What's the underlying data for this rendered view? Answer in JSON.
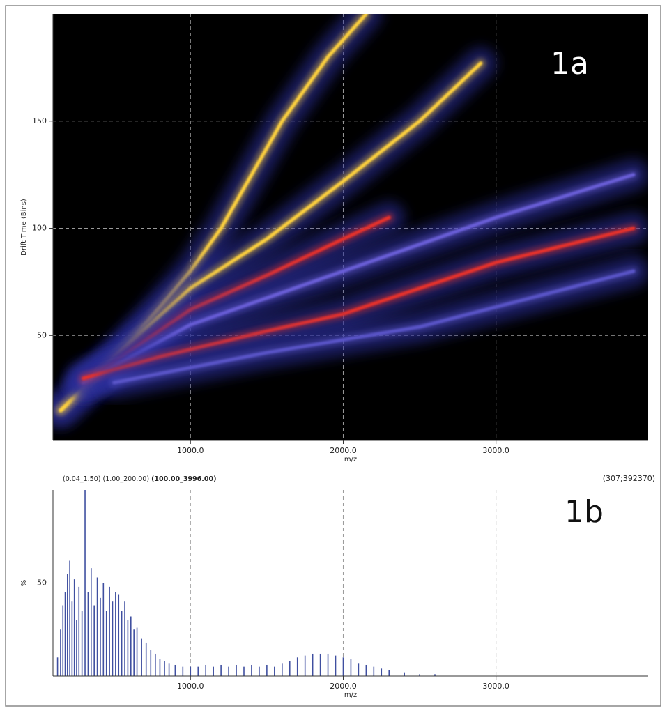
{
  "chart_data": [
    {
      "type": "density",
      "annotation": "1a",
      "ylabel": "Drift Time (Bins)",
      "xlabel": "m/z",
      "background": "#000000",
      "grid": true,
      "grid_color": "#9a9a9a",
      "xlim": [
        100,
        3996
      ],
      "xticks": [
        {
          "value": 1000,
          "label": "1000.0"
        },
        {
          "value": 2000,
          "label": "2000.0"
        },
        {
          "value": 3000,
          "label": "3000.0"
        }
      ],
      "ylim": [
        1,
        200
      ],
      "yticks": [
        50,
        100,
        150
      ],
      "series": [
        {
          "color": "#ffd23c",
          "x": [
            150,
            400,
            700,
            1000,
            1200,
            1600,
            1900,
            2150
          ],
          "values": [
            15,
            30,
            55,
            80,
            100,
            150,
            180,
            200
          ]
        },
        {
          "color": "#ffd23c",
          "x": [
            150,
            500,
            1000,
            1500,
            2000,
            2500,
            2900
          ],
          "values": [
            15,
            40,
            72,
            95,
            122,
            150,
            177
          ]
        },
        {
          "color": "#e8302a",
          "x": [
            300,
            1000,
            1500,
            2000,
            2300
          ],
          "values": [
            28,
            62,
            78,
            95,
            105
          ]
        },
        {
          "color": "#6a5fd8",
          "x": [
            300,
            1000,
            2000,
            3000,
            3900
          ],
          "values": [
            28,
            55,
            80,
            105,
            125
          ]
        },
        {
          "color": "#e8302a",
          "x": [
            300,
            800,
            1500,
            2000,
            3000,
            3900
          ],
          "values": [
            30,
            40,
            52,
            60,
            84,
            100
          ]
        },
        {
          "color": "#5a55c8",
          "x": [
            500,
            1500,
            2500,
            3900
          ],
          "values": [
            28,
            42,
            54,
            80
          ]
        }
      ]
    },
    {
      "type": "spectrum",
      "annotation": "1b",
      "ylabel": "%",
      "xlabel": "m/z",
      "header_left": "(0.04_1.50) (1.00_200.00)",
      "header_bold": "(100.00_3996.00)",
      "header_right": "(307;392370)",
      "background": "#ffffff",
      "grid": true,
      "grid_color": "#9a9a9a",
      "color": "#3f4fa0",
      "xlim": [
        100,
        3996
      ],
      "xticks": [
        {
          "value": 1000,
          "label": "1000.0"
        },
        {
          "value": 2000,
          "label": "2000.0"
        },
        {
          "value": 3000,
          "label": "3000.0"
        }
      ],
      "ylim": [
        0,
        100
      ],
      "yticks": [
        50
      ],
      "x": [
        130,
        150,
        165,
        180,
        195,
        210,
        225,
        240,
        255,
        270,
        290,
        310,
        330,
        350,
        370,
        390,
        410,
        430,
        450,
        470,
        490,
        510,
        530,
        550,
        570,
        590,
        610,
        630,
        650,
        680,
        710,
        740,
        770,
        800,
        830,
        860,
        900,
        950,
        1000,
        1050,
        1100,
        1150,
        1200,
        1250,
        1300,
        1350,
        1400,
        1450,
        1500,
        1550,
        1600,
        1650,
        1700,
        1750,
        1800,
        1850,
        1900,
        1950,
        2000,
        2050,
        2100,
        2150,
        2200,
        2250,
        2300,
        2400,
        2500,
        2600
      ],
      "values": [
        10,
        25,
        38,
        45,
        55,
        62,
        40,
        52,
        30,
        48,
        35,
        100,
        45,
        58,
        38,
        53,
        42,
        50,
        35,
        48,
        40,
        45,
        44,
        35,
        40,
        30,
        32,
        25,
        26,
        20,
        18,
        14,
        12,
        9,
        8,
        7,
        6,
        5,
        5,
        5,
        6,
        5,
        6,
        5,
        6,
        5,
        6,
        5,
        6,
        5,
        7,
        8,
        10,
        11,
        12,
        12,
        12,
        11,
        10,
        9,
        7,
        6,
        5,
        4,
        3,
        2,
        1,
        1
      ]
    }
  ]
}
